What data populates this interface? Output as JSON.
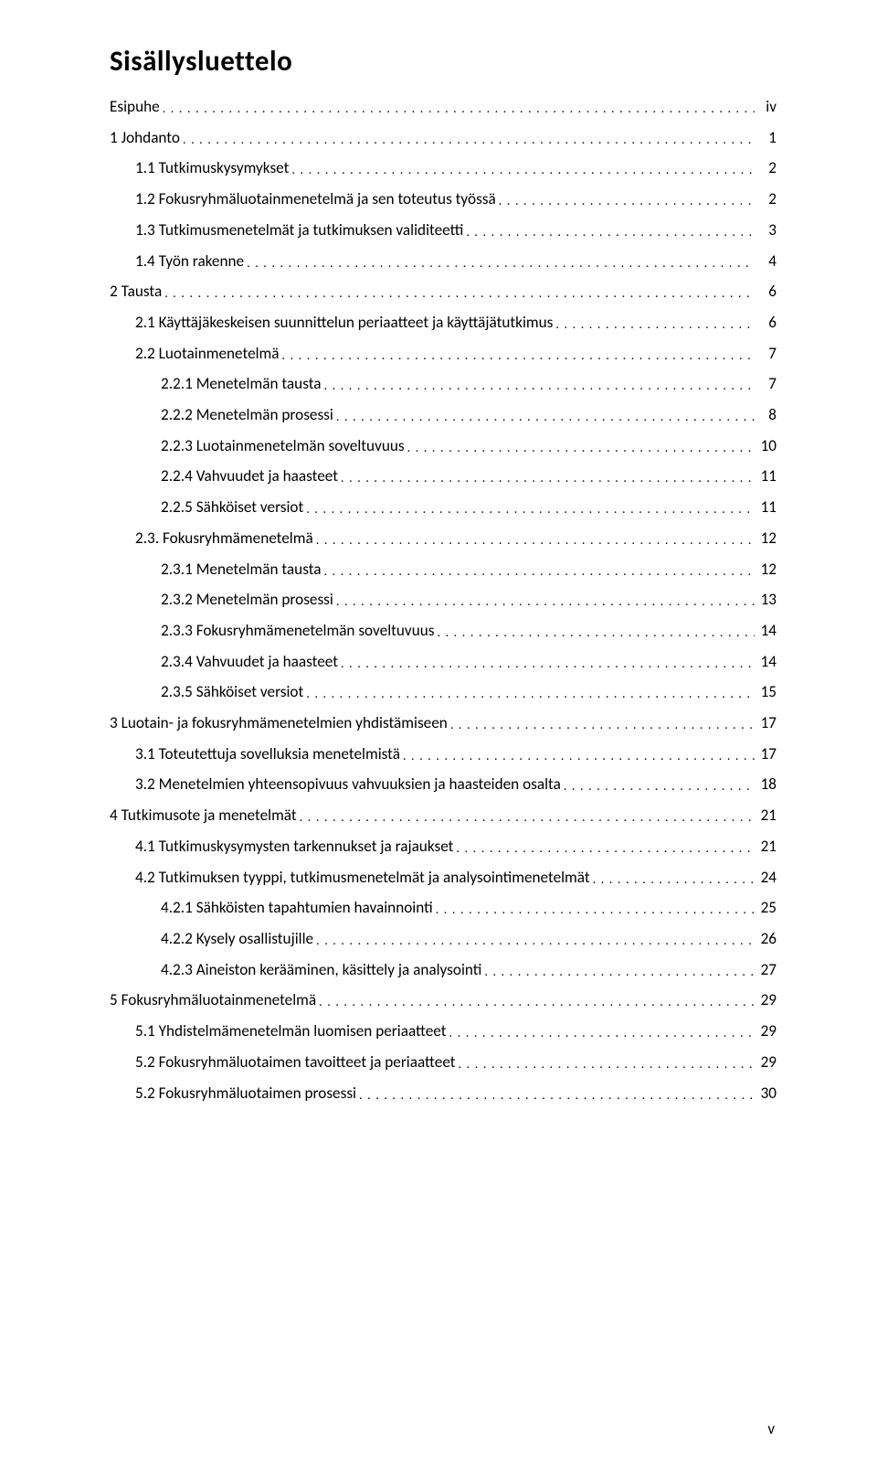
{
  "title": "Sisällysluettelo",
  "pageNumber": "v",
  "leader": ". . . . . . . . . . . . . . . . . . . . . . . . . . . . . . . . . . . . . . . . . . . . . . . . . . . . . . . . . . . . . . . . . . . . . . . . . . . . . . . . . . . . . . . . . . . . . . . . . . . . . . . . . . . . . . . . . . . . . . . . . . . . . . . . . . . . . . . . . . . . . . . . . . . . . . . . . . . . . . . . . . . . . . . . . . . . . . . . . . . . . . . . . . . . . .",
  "entries": [
    {
      "label": "Esipuhe",
      "page": "iv",
      "level": 0
    },
    {
      "label": "1 Johdanto",
      "page": "1",
      "level": 0
    },
    {
      "label": "1.1 Tutkimuskysymykset",
      "page": "2",
      "level": 1
    },
    {
      "label": "1.2 Fokusryhmäluotainmenetelmä ja sen toteutus työssä",
      "page": "2",
      "level": 1
    },
    {
      "label": "1.3 Tutkimusmenetelmät ja tutkimuksen validiteetti",
      "page": "3",
      "level": 1
    },
    {
      "label": "1.4 Työn rakenne",
      "page": "4",
      "level": 1
    },
    {
      "label": "2 Tausta",
      "page": "6",
      "level": 0
    },
    {
      "label": "2.1 Käyttäjäkeskeisen suunnittelun periaatteet ja käyttäjätutkimus",
      "page": "6",
      "level": 1
    },
    {
      "label": "2.2 Luotainmenetelmä",
      "page": "7",
      "level": 1
    },
    {
      "label": "2.2.1 Menetelmän tausta",
      "page": "7",
      "level": 2
    },
    {
      "label": "2.2.2 Menetelmän prosessi",
      "page": "8",
      "level": 2
    },
    {
      "label": "2.2.3 Luotainmenetelmän soveltuvuus",
      "page": "10",
      "level": 2
    },
    {
      "label": "2.2.4 Vahvuudet ja haasteet",
      "page": "11",
      "level": 2
    },
    {
      "label": "2.2.5 Sähköiset versiot",
      "page": "11",
      "level": 2
    },
    {
      "label": "2.3. Fokusryhmämenetelmä",
      "page": "12",
      "level": 1
    },
    {
      "label": "2.3.1 Menetelmän tausta",
      "page": "12",
      "level": 2
    },
    {
      "label": "2.3.2 Menetelmän prosessi",
      "page": "13",
      "level": 2
    },
    {
      "label": "2.3.3 Fokusryhmämenetelmän soveltuvuus",
      "page": "14",
      "level": 2
    },
    {
      "label": "2.3.4 Vahvuudet ja haasteet",
      "page": "14",
      "level": 2
    },
    {
      "label": "2.3.5 Sähköiset versiot",
      "page": "15",
      "level": 2
    },
    {
      "label": "3 Luotain- ja fokusryhmämenetelmien yhdistämiseen",
      "page": "17",
      "level": 0
    },
    {
      "label": "3.1 Toteutettuja sovelluksia menetelmistä",
      "page": "17",
      "level": 1
    },
    {
      "label": "3.2 Menetelmien yhteensopivuus vahvuuksien ja haasteiden osalta",
      "page": "18",
      "level": 1
    },
    {
      "label": "4 Tutkimusote ja menetelmät",
      "page": "21",
      "level": 0
    },
    {
      "label": "4.1 Tutkimuskysymysten tarkennukset ja rajaukset",
      "page": "21",
      "level": 1
    },
    {
      "label": "4.2 Tutkimuksen tyyppi, tutkimusmenetelmät ja analysointimenetelmät",
      "page": "24",
      "level": 1
    },
    {
      "label": "4.2.1 Sähköisten tapahtumien havainnointi",
      "page": "25",
      "level": 2
    },
    {
      "label": "4.2.2 Kysely osallistujille",
      "page": "26",
      "level": 2
    },
    {
      "label": "4.2.3 Aineiston kerääminen, käsittely ja analysointi",
      "page": "27",
      "level": 2
    },
    {
      "label": "5 Fokusryhmäluotainmenetelmä",
      "page": "29",
      "level": 0
    },
    {
      "label": "5.1 Yhdistelmämenetelmän luomisen periaatteet",
      "page": "29",
      "level": 1
    },
    {
      "label": "5.2 Fokusryhmäluotaimen tavoitteet ja periaatteet",
      "page": "29",
      "level": 1
    },
    {
      "label": "5.2 Fokusryhmäluotaimen prosessi",
      "page": "30",
      "level": 1
    }
  ]
}
